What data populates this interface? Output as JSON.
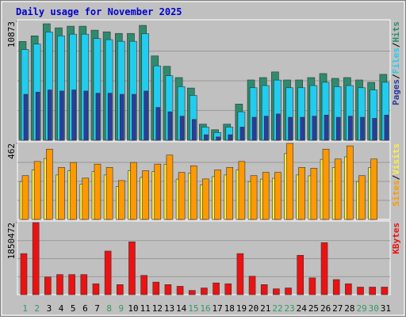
{
  "chart_data": [
    {
      "type": "bar",
      "title": "Daily usage for November 2025",
      "legend_separator": "/",
      "ylim": [
        0,
        10873
      ],
      "yticks": [
        10873
      ],
      "grid": true,
      "series": [
        {
          "name": "Hits",
          "color": "#2e8b6e",
          "values": [
            9037,
            9551,
            10653,
            10285,
            10432,
            10432,
            10065,
            9918,
            9771,
            9771,
            10506,
            7714,
            6759,
            5730,
            4775,
            1469,
            955,
            1469,
            3306,
            5510,
            5730,
            6245,
            5510,
            5510,
            5730,
            6098,
            5657,
            5730,
            5510,
            5290,
            6024
          ]
        },
        {
          "name": "Files",
          "color": "#22ccee",
          "values": [
            8300,
            8800,
            9900,
            9550,
            9700,
            9700,
            9300,
            9200,
            9050,
            9050,
            9750,
            6800,
            5900,
            4900,
            4100,
            1200,
            700,
            1200,
            2600,
            4800,
            5000,
            5500,
            4800,
            4800,
            5000,
            5300,
            4900,
            5000,
            4800,
            4600,
            5300
          ]
        },
        {
          "name": "Pages",
          "color": "#2a3d9e",
          "values": [
            4200,
            4400,
            4600,
            4500,
            4600,
            4500,
            4300,
            4300,
            4200,
            4200,
            4500,
            3000,
            2600,
            2200,
            1900,
            500,
            300,
            500,
            1200,
            2100,
            2200,
            2400,
            2100,
            2100,
            2200,
            2300,
            2100,
            2200,
            2100,
            2000,
            2300
          ]
        }
      ]
    },
    {
      "type": "bar",
      "ylim": [
        0,
        462
      ],
      "yticks": [
        462
      ],
      "grid": true,
      "series": [
        {
          "name": "Visits",
          "color": "#ffee44",
          "values": [
            230,
            300,
            370,
            270,
            295,
            215,
            290,
            270,
            200,
            295,
            255,
            290,
            335,
            245,
            280,
            210,
            260,
            270,
            300,
            230,
            245,
            250,
            400,
            270,
            265,
            365,
            315,
            380,
            230,
            315
          ]
        },
        {
          "name": "Sites",
          "color": "#ff9900",
          "values": [
            266,
            352,
            427,
            316,
            346,
            251,
            336,
            316,
            236,
            346,
            296,
            336,
            391,
            286,
            326,
            246,
            301,
            316,
            352,
            266,
            286,
            286,
            462,
            316,
            311,
            427,
            367,
            447,
            266,
            367
          ]
        }
      ]
    },
    {
      "type": "bar",
      "ylim": [
        0,
        1850472
      ],
      "yticks": [
        1850472
      ],
      "grid": true,
      "categories": [
        "1",
        "2",
        "3",
        "4",
        "5",
        "6",
        "7",
        "8",
        "9",
        "10",
        "11",
        "12",
        "13",
        "14",
        "15",
        "16",
        "17",
        "18",
        "19",
        "20",
        "21",
        "22",
        "23",
        "24",
        "25",
        "26",
        "27",
        "28",
        "29",
        "30",
        "31"
      ],
      "category_colors": [
        "#339966",
        "#339966",
        "#000000",
        "#000000",
        "#000000",
        "#000000",
        "#000000",
        "#339966",
        "#339966",
        "#000000",
        "#000000",
        "#000000",
        "#000000",
        "#000000",
        "#339966",
        "#339966",
        "#000000",
        "#000000",
        "#000000",
        "#000000",
        "#000000",
        "#339966",
        "#339966",
        "#000000",
        "#000000",
        "#000000",
        "#000000",
        "#000000",
        "#339966",
        "#339966",
        "#000000"
      ],
      "series": [
        {
          "name": "KBytes",
          "color": "#ee1111",
          "values": [
            1054000,
            1850472,
            452000,
            516000,
            516000,
            516000,
            280000,
            1119000,
            258000,
            1356000,
            495000,
            323000,
            258000,
            215000,
            108000,
            172000,
            301000,
            280000,
            1054000,
            473000,
            258000,
            150000,
            172000,
            1011000,
            430000,
            1334000,
            387000,
            280000,
            194000,
            194000,
            194000
          ]
        }
      ]
    }
  ]
}
